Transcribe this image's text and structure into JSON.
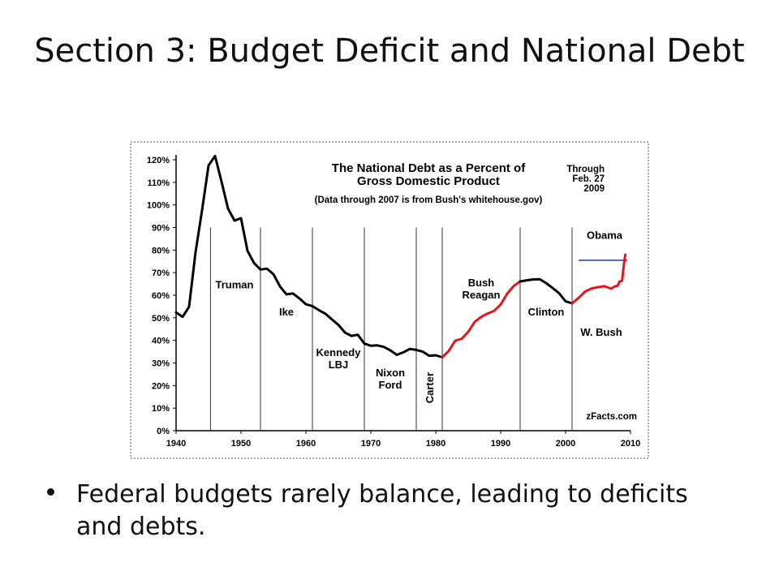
{
  "slide": {
    "title": "Section 3: Budget Deficit and National Debt",
    "bullets": [
      "Federal budgets rarely balance, leading to deficits and debts."
    ]
  },
  "chart_data": {
    "type": "line",
    "title": "The National Debt as a Percent of\nGross Domestic Product",
    "subtitle": "(Data through 2007 is from Bush's whitehouse.gov)",
    "note": "Through\nFeb. 27\n2009",
    "source": "zFacts.com",
    "xlim": [
      1940,
      2010
    ],
    "ylim": [
      0,
      120
    ],
    "x_ticks": [
      1940,
      1950,
      1960,
      1970,
      1980,
      1990,
      2000,
      2010
    ],
    "y_ticks": [
      0,
      10,
      20,
      30,
      40,
      50,
      60,
      70,
      80,
      90,
      100,
      110,
      120
    ],
    "y_tick_suffix": "%",
    "grid": false,
    "presidency_dividers": [
      1945.3,
      1953,
      1961,
      1969,
      1977,
      1981
    ],
    "presidency_dividers_tall": [
      1993,
      2001
    ],
    "presidency_labels": [
      {
        "text": "Truman",
        "x": 1949,
        "y": 63
      },
      {
        "text": "Ike",
        "x": 1957,
        "y": 51
      },
      {
        "text": "Kennedy\nLBJ",
        "x": 1965,
        "y": 33
      },
      {
        "text": "Nixon\nFord",
        "x": 1973,
        "y": 24
      },
      {
        "text": "Bush\nReagan",
        "x": 1987,
        "y": 64
      },
      {
        "text": "Clinton",
        "x": 1997,
        "y": 51
      },
      {
        "text": "W. Bush",
        "x": 2005.5,
        "y": 42
      },
      {
        "text": "Obama",
        "x": 2006,
        "y": 85
      }
    ],
    "carter_label": {
      "text": "Carter",
      "x": 1979,
      "y": 19
    },
    "obama_line": {
      "x": [
        2002,
        2009.5
      ],
      "y": 75.5,
      "color": "#1f3a7a"
    },
    "series": [
      {
        "color": "#000000",
        "x": [
          1940,
          1941,
          1942,
          1943,
          1944,
          1945,
          1946,
          1947,
          1948,
          1949,
          1950,
          1951,
          1952,
          1953,
          1954,
          1955,
          1956,
          1957,
          1958,
          1959,
          1960,
          1961,
          1962,
          1963,
          1964,
          1965,
          1966,
          1967,
          1968,
          1969,
          1970,
          1971,
          1972,
          1973,
          1974,
          1975,
          1976,
          1977,
          1978,
          1979,
          1980,
          1981
        ],
        "y": [
          52.4,
          50.4,
          54.9,
          79.1,
          97.6,
          117.5,
          121.7,
          110.3,
          98.4,
          93.1,
          94.1,
          79.7,
          74.3,
          71.4,
          71.8,
          69.3,
          63.9,
          60.4,
          60.8,
          58.6,
          56.0,
          55.2,
          53.4,
          51.8,
          49.3,
          46.9,
          43.5,
          42.0,
          42.5,
          38.6,
          37.6,
          37.8,
          37.1,
          35.6,
          33.6,
          34.7,
          36.2,
          35.8,
          35.0,
          33.2,
          33.4,
          32.5
        ]
      },
      {
        "color": "#e8141b",
        "x": [
          1981,
          1982,
          1983,
          1984,
          1985,
          1986,
          1987,
          1988,
          1989,
          1990,
          1991,
          1992,
          1993
        ],
        "y": [
          32.5,
          35.3,
          39.9,
          40.7,
          43.8,
          48.2,
          50.4,
          51.9,
          53.1,
          55.9,
          60.7,
          64.1,
          66.1
        ]
      },
      {
        "color": "#000000",
        "x": [
          1993,
          1994,
          1995,
          1996,
          1997,
          1998,
          1999,
          2000,
          2001
        ],
        "y": [
          66.1,
          66.6,
          67.0,
          67.1,
          65.4,
          63.2,
          60.9,
          57.3,
          56.4
        ]
      },
      {
        "color": "#e8141b",
        "x": [
          2001,
          2002,
          2003,
          2004,
          2005,
          2006,
          2007,
          2007.5,
          2008,
          2008.3,
          2008.7,
          2009,
          2009.2
        ],
        "y": [
          56.4,
          58.8,
          61.6,
          63.0,
          63.6,
          64.0,
          62.9,
          63.8,
          64.2,
          66.0,
          66.4,
          74.0,
          78.0
        ]
      }
    ]
  }
}
